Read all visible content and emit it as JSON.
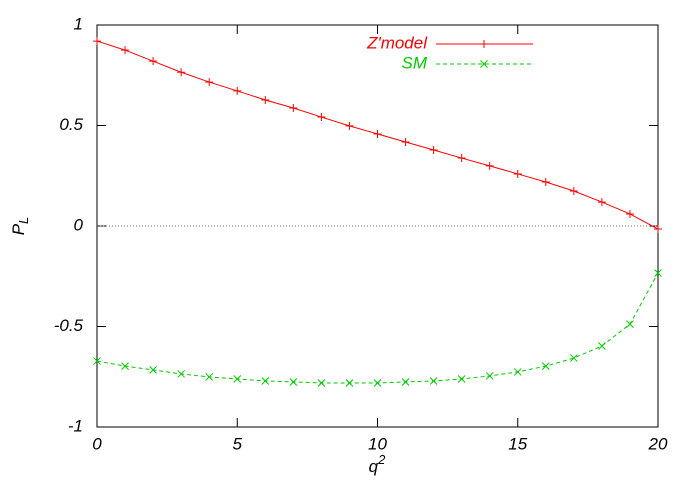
{
  "chart_data": {
    "type": "line",
    "x_label": {
      "text": "q",
      "sup": "2"
    },
    "y_label": {
      "text": "P",
      "sub": "L"
    },
    "x": [
      0,
      1,
      2,
      3,
      4,
      5,
      6,
      7,
      8,
      9,
      10,
      11,
      12,
      13,
      14,
      15,
      16,
      17,
      18,
      19,
      20
    ],
    "series": [
      {
        "name": "Z'model",
        "color": "#ff0000",
        "marker": "plus",
        "values": [
          0.92,
          0.875,
          0.82,
          0.765,
          0.716,
          0.672,
          0.627,
          0.587,
          0.542,
          0.498,
          0.458,
          0.418,
          0.378,
          0.338,
          0.299,
          0.259,
          0.219,
          0.174,
          0.119,
          0.06,
          -0.015
        ]
      },
      {
        "name": "SM",
        "color": "#00cc00",
        "marker": "cross",
        "dashed": true,
        "values": [
          -0.672,
          -0.697,
          -0.716,
          -0.736,
          -0.751,
          -0.761,
          -0.771,
          -0.776,
          -0.781,
          -0.781,
          -0.781,
          -0.776,
          -0.771,
          -0.761,
          -0.746,
          -0.726,
          -0.697,
          -0.657,
          -0.597,
          -0.488,
          -0.234
        ]
      }
    ],
    "xlim": [
      0,
      20
    ],
    "xticks": [
      0,
      5,
      10,
      15,
      20
    ],
    "ylim": [
      -1,
      1
    ],
    "yticks": [
      -1,
      -0.5,
      0,
      0.5,
      1
    ],
    "zero_line": true,
    "legend": "top-right"
  }
}
